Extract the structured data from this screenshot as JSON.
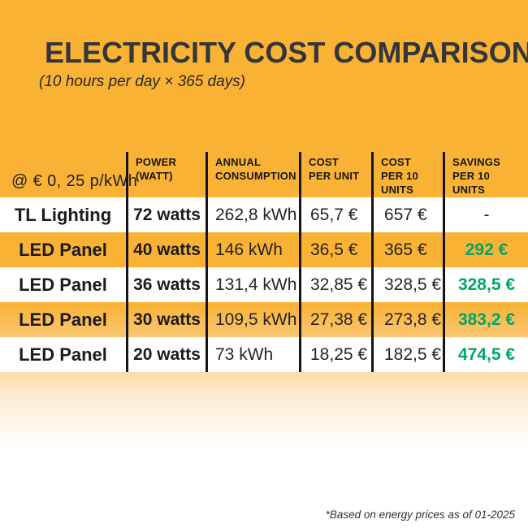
{
  "page": {
    "title": "ELECTRICITY COST COMPARISON",
    "subtitle": "(10 hours per day × 365 days)",
    "footnote": "*Based on energy prices as of 01-2025"
  },
  "colors": {
    "background_orange": "#F9B233",
    "savings_green": "#00A56A",
    "separator_black": "#141414",
    "title_dark": "#33363C"
  },
  "table": {
    "rate_label": "@ € 0, 25 p/kWh",
    "columns": [
      {
        "label": "POWER\n(WATT)"
      },
      {
        "label": "ANNUAL\nCONSUMPTION"
      },
      {
        "label": "COST\nPER UNIT"
      },
      {
        "label": "COST\nPER 10\nUNITS"
      },
      {
        "label": "SAVINGS\nPER 10\nUNITS"
      }
    ],
    "rows": [
      {
        "name": "TL Lighting",
        "power": "72 watts",
        "annual": "262,8 kWh",
        "cost_unit": "65,7 €",
        "cost_10": "657 €",
        "savings": "-"
      },
      {
        "name": "LED Panel",
        "power": "40 watts",
        "annual": "146 kWh",
        "cost_unit": "36,5 €",
        "cost_10": "365 €",
        "savings": "292 €"
      },
      {
        "name": "LED Panel",
        "power": "36 watts",
        "annual": "131,4 kWh",
        "cost_unit": "32,85 €",
        "cost_10": "328,5 €",
        "savings": "328,5 €"
      },
      {
        "name": "LED Panel",
        "power": "30 watts",
        "annual": "109,5 kWh",
        "cost_unit": "27,38 €",
        "cost_10": "273,8 €",
        "savings": "383,2 €"
      },
      {
        "name": "LED Panel",
        "power": "20 watts",
        "annual": "73 kWh",
        "cost_unit": "18,25 €",
        "cost_10": "182,5 €",
        "savings": "474,5 €"
      }
    ]
  },
  "chart_data": {
    "type": "table",
    "title": "ELECTRICITY COST COMPARISON",
    "subtitle": "(10 hours per day × 365 days)",
    "rate_note": "@ € 0, 25 p/kWh",
    "footnote": "*Based on energy prices as of 01-2025",
    "columns": [
      "",
      "POWER (WATT)",
      "ANNUAL CONSUMPTION",
      "COST PER UNIT",
      "COST PER 10 UNITS",
      "SAVINGS PER 10 UNITS"
    ],
    "rows": [
      [
        "TL Lighting",
        "72 watts",
        "262,8 kWh",
        "65,7 €",
        "657 €",
        "-"
      ],
      [
        "LED Panel",
        "40 watts",
        "146 kWh",
        "36,5 €",
        "365 €",
        "292 €"
      ],
      [
        "LED Panel",
        "36 watts",
        "131,4 kWh",
        "32,85 €",
        "328,5 €",
        "328,5 €"
      ],
      [
        "LED Panel",
        "30 watts",
        "109,5 kWh",
        "27,38 €",
        "273,8 €",
        "383,2 €"
      ],
      [
        "LED Panel",
        "20 watts",
        "73 kWh",
        "18,25 €",
        "182,5 €",
        "474,5 €"
      ]
    ]
  }
}
